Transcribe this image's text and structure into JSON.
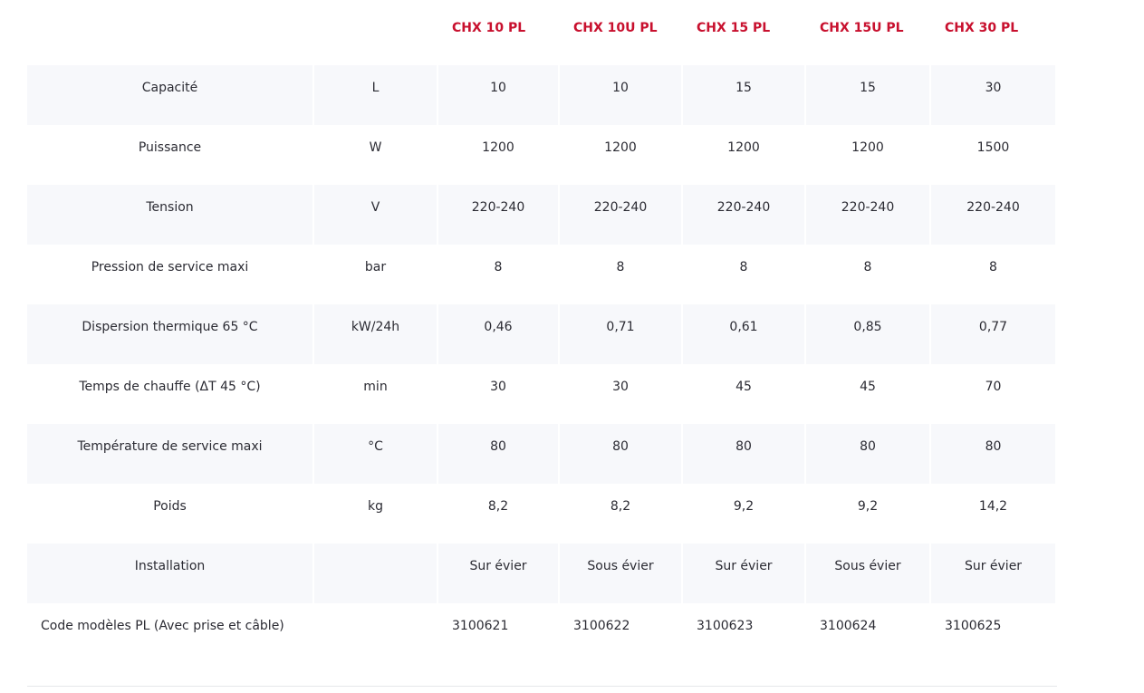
{
  "columns": [
    "CHX 10 PL",
    "CHX 10U PL",
    "CHX 15 PL",
    "CHX 15U PL",
    "CHX 30 PL"
  ],
  "accent_color": "#c8102e",
  "rows": [
    {
      "label": "Capacité",
      "unit": "L",
      "values": [
        "10",
        "10",
        "15",
        "15",
        "30"
      ]
    },
    {
      "label": "Puissance",
      "unit": "W",
      "values": [
        "1200",
        "1200",
        "1200",
        "1200",
        "1500"
      ]
    },
    {
      "label": "Tension",
      "unit": "V",
      "values": [
        "220-240",
        "220-240",
        "220-240",
        "220-240",
        "220-240"
      ]
    },
    {
      "label": "Pression de service maxi",
      "unit": "bar",
      "values": [
        "8",
        "8",
        "8",
        "8",
        "8"
      ]
    },
    {
      "label": "Dispersion thermique  65 °C",
      "unit": "kW/24h",
      "values": [
        "0,46",
        "0,71",
        "0,61",
        "0,85",
        "0,77"
      ]
    },
    {
      "label": "Temps de chauffe  (ΔT 45 °C)",
      "unit": "min",
      "values": [
        "30",
        "30",
        "45",
        "45",
        "70"
      ]
    },
    {
      "label": "Température de service maxi",
      "unit": "°C",
      "values": [
        "80",
        "80",
        "80",
        "80",
        "80"
      ]
    },
    {
      "label": "Poids",
      "unit": "kg",
      "values": [
        "8,2",
        "8,2",
        "9,2",
        "9,2",
        "14,2"
      ]
    },
    {
      "label": "Installation",
      "unit": "",
      "values": [
        "Sur évier",
        "Sous évier",
        "Sur évier",
        "Sous évier",
        "Sur évier"
      ]
    },
    {
      "label": "Code modèles PL (Avec prise et câble)",
      "unit": "",
      "values": [
        "3100621",
        "3100622",
        "3100623",
        "3100624",
        "3100625"
      ]
    }
  ]
}
